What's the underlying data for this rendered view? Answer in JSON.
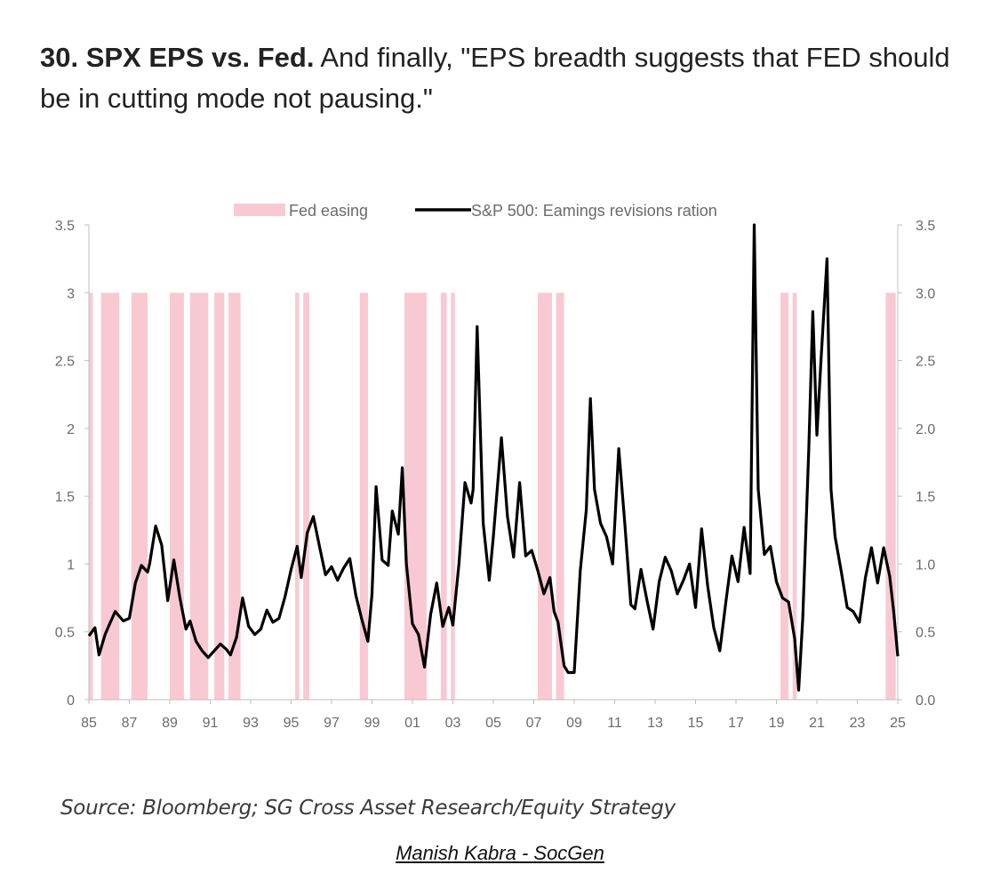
{
  "header": {
    "title_bold": "30. SPX EPS vs. Fed.",
    "title_rest": " And finally, \"EPS breadth suggests that FED should be in cutting mode not pausing.\""
  },
  "footer": {
    "source": "Source: Bloomberg; SG Cross Asset Research/Equity Strategy",
    "credit": "Manish Kabra - SocGen"
  },
  "colors": {
    "easing": "#f9c9d3",
    "line": "#000000",
    "axis": "#bfbfbf"
  },
  "chart_data": {
    "type": "line",
    "title": "",
    "legend": [
      {
        "name": "Fed easing",
        "kind": "bar"
      },
      {
        "name": "S&P 500: Eamings revisions ration",
        "kind": "line"
      }
    ],
    "legend_position": "top",
    "xlim": [
      1985,
      2025
    ],
    "ylim": [
      0,
      3.5
    ],
    "x_tick_labels": [
      "85",
      "87",
      "89",
      "91",
      "93",
      "95",
      "97",
      "99",
      "01",
      "03",
      "05",
      "07",
      "09",
      "11",
      "13",
      "15",
      "17",
      "19",
      "21",
      "23",
      "25"
    ],
    "y_left_ticks": [
      "0",
      "0.5",
      "1",
      "1.5",
      "2",
      "2.5",
      "3",
      "3.5"
    ],
    "y_right_ticks": [
      "0.0",
      "0.5",
      "1.0",
      "1.5",
      "2.0",
      "2.5",
      "3.0",
      "3.5"
    ],
    "fed_easing_height": 3.0,
    "fed_easing_periods": [
      [
        1985.0,
        1985.2
      ],
      [
        1985.6,
        1986.5
      ],
      [
        1987.1,
        1987.9
      ],
      [
        1989.0,
        1989.7
      ],
      [
        1990.0,
        1990.9
      ],
      [
        1991.2,
        1991.7
      ],
      [
        1991.9,
        1992.5
      ],
      [
        1995.2,
        1995.4
      ],
      [
        1995.6,
        1995.9
      ],
      [
        1998.4,
        1998.8
      ],
      [
        2000.6,
        2001.7
      ],
      [
        2002.4,
        2002.7
      ],
      [
        2002.9,
        2003.1
      ],
      [
        2007.2,
        2007.9
      ],
      [
        2008.1,
        2008.5
      ],
      [
        2019.2,
        2019.6
      ],
      [
        2019.8,
        2020.0
      ],
      [
        2024.4,
        2024.9
      ]
    ],
    "series": [
      {
        "name": "S&P 500: Eamings revisions ration",
        "points": [
          [
            1985.0,
            0.47
          ],
          [
            1985.3,
            0.53
          ],
          [
            1985.5,
            0.33
          ],
          [
            1985.8,
            0.48
          ],
          [
            1986.0,
            0.55
          ],
          [
            1986.3,
            0.65
          ],
          [
            1986.7,
            0.58
          ],
          [
            1987.0,
            0.6
          ],
          [
            1987.3,
            0.86
          ],
          [
            1987.6,
            0.99
          ],
          [
            1987.9,
            0.94
          ],
          [
            1988.0,
            1.0
          ],
          [
            1988.3,
            1.28
          ],
          [
            1988.6,
            1.14
          ],
          [
            1988.9,
            0.73
          ],
          [
            1989.2,
            1.03
          ],
          [
            1989.5,
            0.75
          ],
          [
            1989.8,
            0.52
          ],
          [
            1990.0,
            0.58
          ],
          [
            1990.3,
            0.43
          ],
          [
            1990.6,
            0.36
          ],
          [
            1990.9,
            0.31
          ],
          [
            1991.2,
            0.36
          ],
          [
            1991.5,
            0.41
          ],
          [
            1991.8,
            0.37
          ],
          [
            1992.0,
            0.33
          ],
          [
            1992.3,
            0.46
          ],
          [
            1992.6,
            0.75
          ],
          [
            1992.9,
            0.54
          ],
          [
            1993.2,
            0.48
          ],
          [
            1993.5,
            0.52
          ],
          [
            1993.8,
            0.66
          ],
          [
            1994.1,
            0.57
          ],
          [
            1994.4,
            0.6
          ],
          [
            1994.7,
            0.76
          ],
          [
            1995.0,
            0.96
          ],
          [
            1995.3,
            1.13
          ],
          [
            1995.5,
            0.9
          ],
          [
            1995.8,
            1.23
          ],
          [
            1996.1,
            1.35
          ],
          [
            1996.4,
            1.13
          ],
          [
            1996.7,
            0.92
          ],
          [
            1997.0,
            0.98
          ],
          [
            1997.3,
            0.88
          ],
          [
            1997.6,
            0.97
          ],
          [
            1997.9,
            1.04
          ],
          [
            1998.2,
            0.77
          ],
          [
            1998.5,
            0.59
          ],
          [
            1998.8,
            0.43
          ],
          [
            1999.0,
            0.78
          ],
          [
            1999.2,
            1.57
          ],
          [
            1999.5,
            1.03
          ],
          [
            1999.8,
            0.99
          ],
          [
            2000.0,
            1.39
          ],
          [
            2000.3,
            1.22
          ],
          [
            2000.5,
            1.71
          ],
          [
            2000.7,
            1.0
          ],
          [
            2001.0,
            0.56
          ],
          [
            2001.3,
            0.48
          ],
          [
            2001.6,
            0.24
          ],
          [
            2001.9,
            0.63
          ],
          [
            2002.2,
            0.86
          ],
          [
            2002.5,
            0.54
          ],
          [
            2002.8,
            0.68
          ],
          [
            2003.0,
            0.55
          ],
          [
            2003.3,
            1.0
          ],
          [
            2003.6,
            1.6
          ],
          [
            2003.9,
            1.45
          ],
          [
            2004.0,
            1.55
          ],
          [
            2004.2,
            2.75
          ],
          [
            2004.5,
            1.3
          ],
          [
            2004.8,
            0.88
          ],
          [
            2005.0,
            1.2
          ],
          [
            2005.4,
            1.93
          ],
          [
            2005.7,
            1.35
          ],
          [
            2006.0,
            1.05
          ],
          [
            2006.3,
            1.6
          ],
          [
            2006.6,
            1.06
          ],
          [
            2006.9,
            1.1
          ],
          [
            2007.2,
            0.95
          ],
          [
            2007.5,
            0.78
          ],
          [
            2007.8,
            0.9
          ],
          [
            2008.0,
            0.65
          ],
          [
            2008.2,
            0.57
          ],
          [
            2008.5,
            0.25
          ],
          [
            2008.7,
            0.2
          ],
          [
            2009.0,
            0.2
          ],
          [
            2009.3,
            0.95
          ],
          [
            2009.6,
            1.4
          ],
          [
            2009.8,
            2.22
          ],
          [
            2010.0,
            1.55
          ],
          [
            2010.3,
            1.3
          ],
          [
            2010.6,
            1.2
          ],
          [
            2010.9,
            1.0
          ],
          [
            2011.2,
            1.85
          ],
          [
            2011.5,
            1.3
          ],
          [
            2011.8,
            0.7
          ],
          [
            2012.0,
            0.67
          ],
          [
            2012.3,
            0.96
          ],
          [
            2012.6,
            0.73
          ],
          [
            2012.9,
            0.52
          ],
          [
            2013.2,
            0.87
          ],
          [
            2013.5,
            1.05
          ],
          [
            2013.8,
            0.95
          ],
          [
            2014.1,
            0.78
          ],
          [
            2014.4,
            0.88
          ],
          [
            2014.7,
            1.0
          ],
          [
            2015.0,
            0.68
          ],
          [
            2015.3,
            1.26
          ],
          [
            2015.6,
            0.84
          ],
          [
            2015.9,
            0.53
          ],
          [
            2016.2,
            0.36
          ],
          [
            2016.5,
            0.72
          ],
          [
            2016.8,
            1.06
          ],
          [
            2017.1,
            0.87
          ],
          [
            2017.4,
            1.27
          ],
          [
            2017.7,
            0.93
          ],
          [
            2017.9,
            3.5
          ],
          [
            2018.1,
            1.55
          ],
          [
            2018.4,
            1.07
          ],
          [
            2018.7,
            1.13
          ],
          [
            2019.0,
            0.87
          ],
          [
            2019.3,
            0.75
          ],
          [
            2019.6,
            0.72
          ],
          [
            2019.9,
            0.45
          ],
          [
            2020.1,
            0.07
          ],
          [
            2020.3,
            0.6
          ],
          [
            2020.6,
            1.85
          ],
          [
            2020.8,
            2.86
          ],
          [
            2021.0,
            1.95
          ],
          [
            2021.2,
            2.5
          ],
          [
            2021.5,
            3.25
          ],
          [
            2021.7,
            1.55
          ],
          [
            2021.9,
            1.2
          ],
          [
            2022.2,
            0.95
          ],
          [
            2022.5,
            0.68
          ],
          [
            2022.8,
            0.65
          ],
          [
            2023.1,
            0.57
          ],
          [
            2023.4,
            0.9
          ],
          [
            2023.7,
            1.12
          ],
          [
            2024.0,
            0.86
          ],
          [
            2024.3,
            1.12
          ],
          [
            2024.6,
            0.91
          ],
          [
            2024.8,
            0.65
          ],
          [
            2025.0,
            0.32
          ]
        ]
      }
    ]
  }
}
